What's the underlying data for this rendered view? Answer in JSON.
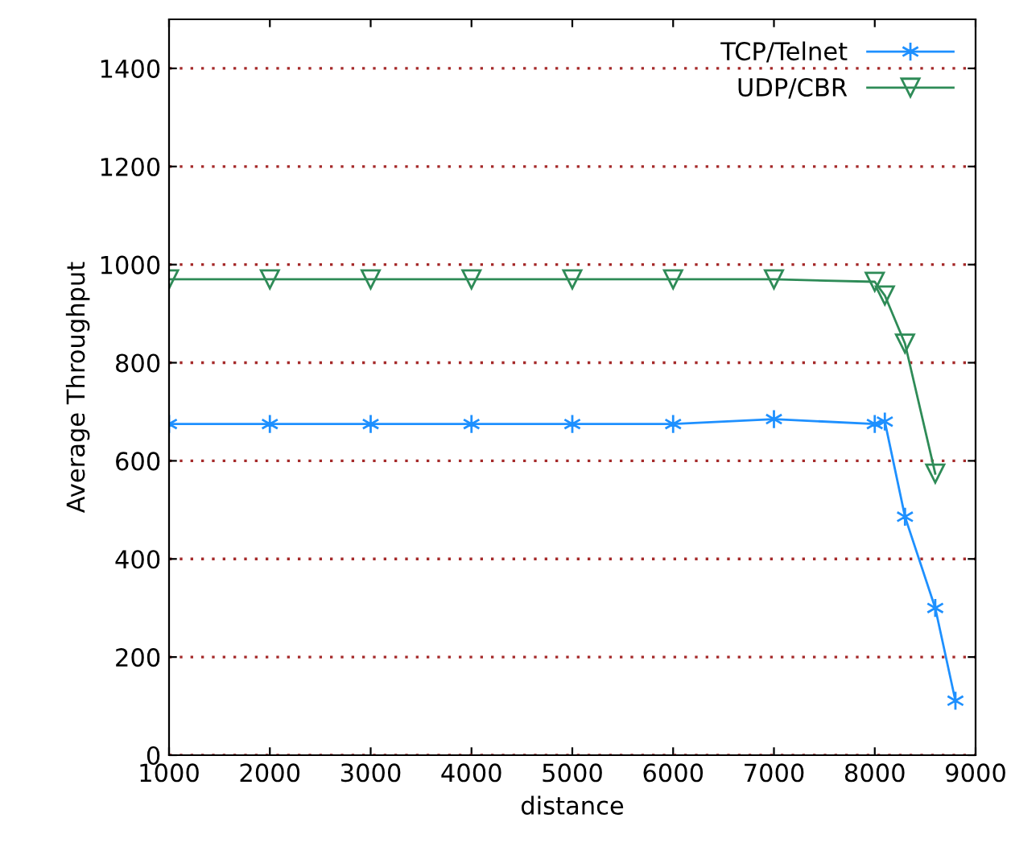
{
  "chart_data": {
    "type": "line",
    "xlabel": "distance",
    "ylabel": "Average Throughput",
    "xlim": [
      1000,
      9000
    ],
    "xticks": [
      1000,
      2000,
      3000,
      4000,
      5000,
      6000,
      7000,
      8000,
      9000
    ],
    "ylim": [
      0,
      1500
    ],
    "yticks": [
      0,
      200,
      400,
      600,
      800,
      1000,
      1200,
      1400
    ],
    "grid": "y",
    "legend": "top right",
    "series": [
      {
        "name": "TCP/Telnet",
        "color": "#1e90ff",
        "marker": "cross",
        "x": [
          1000,
          2000,
          3000,
          4000,
          5000,
          6000,
          7000,
          8000,
          8100,
          8300,
          8600,
          8800
        ],
        "values": [
          675,
          675,
          675,
          675,
          675,
          675,
          685,
          675,
          680,
          486,
          300,
          111
        ]
      },
      {
        "name": "UDP/CBR",
        "color": "#2e8b57",
        "marker": "triangle",
        "x": [
          1000,
          2000,
          3000,
          4000,
          5000,
          6000,
          7000,
          8000,
          8100,
          8300,
          8600
        ],
        "values": [
          970,
          970,
          970,
          970,
          970,
          970,
          970,
          965,
          937,
          839,
          574
        ]
      }
    ]
  }
}
